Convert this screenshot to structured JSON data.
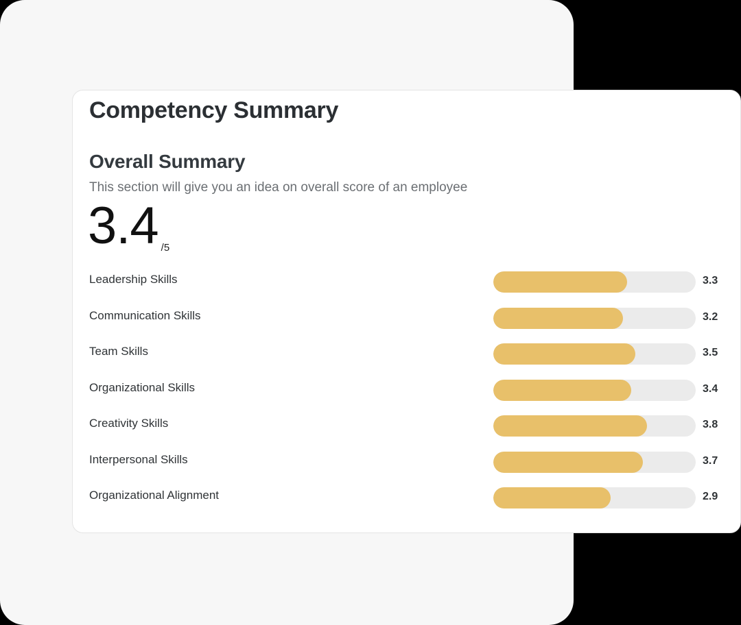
{
  "card": {
    "title": "Competency Summary",
    "section_title": "Overall Summary",
    "section_description": "This section will give you an idea on overall score of an employee",
    "overall_score": "3.4",
    "overall_max": "/5"
  },
  "colors": {
    "bar_fill": "#e8c06a",
    "bar_track": "#ebebeb",
    "panel_background": "#f7f7f7",
    "page_background": "#000000"
  },
  "skills": [
    {
      "label": "Leadership Skills",
      "value": "3.3",
      "pct": 66
    },
    {
      "label": "Communication Skills",
      "value": "3.2",
      "pct": 64
    },
    {
      "label": "Team Skills",
      "value": "3.5",
      "pct": 70
    },
    {
      "label": "Organizational Skills",
      "value": "3.4",
      "pct": 68
    },
    {
      "label": "Creativity Skills",
      "value": "3.8",
      "pct": 76
    },
    {
      "label": "Interpersonal Skills",
      "value": "3.7",
      "pct": 74
    },
    {
      "label": "Organizational Alignment",
      "value": "2.9",
      "pct": 58
    }
  ]
}
